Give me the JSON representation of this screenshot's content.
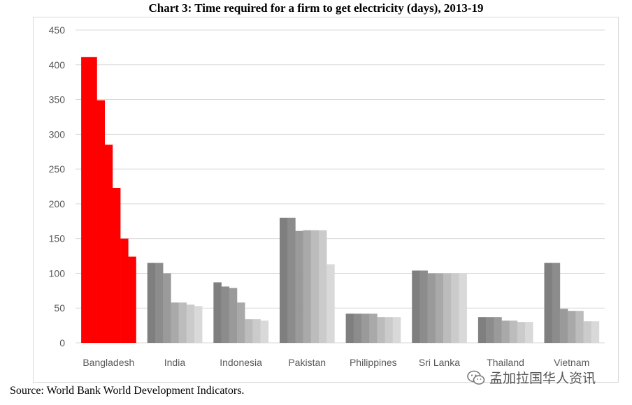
{
  "chart_data": {
    "type": "bar",
    "title": "Chart 3: Time required  for a firm  to get electricity (days), 2013-19",
    "xlabel": "",
    "ylabel": "",
    "ylim": [
      0,
      450
    ],
    "yticks": [
      0,
      50,
      100,
      150,
      200,
      250,
      300,
      350,
      400,
      450
    ],
    "grid": true,
    "legend": "none",
    "categories": [
      "Bangladesh",
      "India",
      "Indonesia",
      "Pakistan",
      "Philippines",
      "Sri Lanka",
      "Thailand",
      "Vietnam"
    ],
    "values": [
      [
        411,
        411,
        349,
        285,
        223,
        150,
        124
      ],
      [
        115,
        115,
        100,
        58,
        58,
        55,
        53
      ],
      [
        87,
        81,
        79,
        58,
        34,
        34,
        32
      ],
      [
        180,
        180,
        161,
        162,
        162,
        162,
        113
      ],
      [
        42,
        42,
        42,
        42,
        37,
        37,
        37
      ],
      [
        104,
        104,
        100,
        100,
        100,
        100,
        100
      ],
      [
        37,
        37,
        37,
        32,
        32,
        30,
        30
      ],
      [
        115,
        115,
        49,
        46,
        46,
        31,
        31
      ]
    ],
    "colors": {
      "highlight": "#ff0000",
      "years": [
        "#7f7f7f",
        "#8c8c8c",
        "#9a9a9a",
        "#a9a9a9",
        "#bcbcbc",
        "#cbcbcb",
        "#d9d9d9"
      ]
    }
  },
  "source": "Source: World Bank World Development Indicators.",
  "watermark": "孟加拉国华人资讯"
}
